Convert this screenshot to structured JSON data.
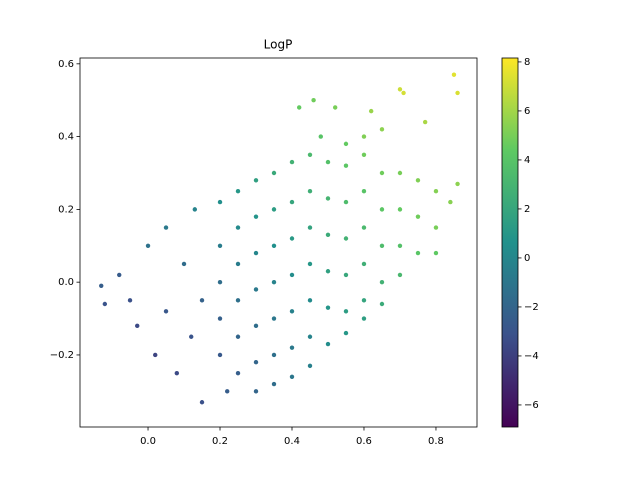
{
  "chart_data": {
    "type": "scatter",
    "title": "LogP",
    "x": [
      -0.13,
      -0.12,
      -0.08,
      -0.05,
      -0.03,
      0.0,
      0.02,
      0.05,
      0.05,
      0.08,
      0.1,
      0.12,
      0.13,
      0.15,
      0.15,
      0.2,
      0.2,
      0.2,
      0.2,
      0.2,
      0.22,
      0.25,
      0.25,
      0.25,
      0.25,
      0.25,
      0.25,
      0.3,
      0.3,
      0.3,
      0.3,
      0.3,
      0.3,
      0.3,
      0.35,
      0.35,
      0.35,
      0.35,
      0.35,
      0.35,
      0.35,
      0.4,
      0.4,
      0.4,
      0.4,
      0.4,
      0.4,
      0.4,
      0.45,
      0.45,
      0.45,
      0.45,
      0.45,
      0.45,
      0.45,
      0.5,
      0.5,
      0.5,
      0.5,
      0.5,
      0.5,
      0.55,
      0.55,
      0.55,
      0.55,
      0.55,
      0.55,
      0.6,
      0.6,
      0.6,
      0.6,
      0.6,
      0.6,
      0.65,
      0.65,
      0.65,
      0.65,
      0.65,
      0.7,
      0.7,
      0.7,
      0.7,
      0.75,
      0.75,
      0.75,
      0.8,
      0.8,
      0.8,
      0.84,
      0.86,
      0.42,
      0.46,
      0.52,
      0.62,
      0.7,
      0.71,
      0.77,
      0.85,
      0.86,
      0.6,
      0.65,
      0.48,
      0.55
    ],
    "y": [
      -0.01,
      -0.06,
      0.02,
      -0.05,
      -0.12,
      0.1,
      -0.2,
      0.15,
      -0.08,
      -0.25,
      0.05,
      -0.15,
      0.2,
      -0.33,
      -0.05,
      0.22,
      0.1,
      0.0,
      -0.1,
      -0.2,
      -0.3,
      0.25,
      0.15,
      0.05,
      -0.05,
      -0.15,
      -0.25,
      0.28,
      0.18,
      0.08,
      -0.02,
      -0.12,
      -0.22,
      -0.3,
      0.3,
      0.2,
      0.1,
      0.0,
      -0.1,
      -0.2,
      -0.28,
      0.33,
      0.22,
      0.12,
      0.02,
      -0.08,
      -0.18,
      -0.26,
      0.35,
      0.25,
      0.15,
      0.05,
      -0.05,
      -0.15,
      -0.23,
      0.33,
      0.23,
      0.13,
      0.03,
      -0.07,
      -0.17,
      0.32,
      0.22,
      0.12,
      0.02,
      -0.08,
      -0.14,
      0.35,
      0.25,
      0.15,
      0.05,
      -0.05,
      -0.1,
      0.3,
      0.2,
      0.1,
      0.0,
      -0.06,
      0.3,
      0.2,
      0.1,
      0.02,
      0.28,
      0.18,
      0.08,
      0.25,
      0.15,
      0.08,
      0.22,
      0.27,
      0.48,
      0.5,
      0.48,
      0.47,
      0.53,
      0.52,
      0.44,
      0.57,
      0.52,
      0.4,
      0.42,
      0.4,
      0.38
    ],
    "c": [
      -2.4,
      -3.0,
      -2.6,
      -3.2,
      -3.5,
      -1.2,
      -3.8,
      -0.8,
      -2.8,
      -3.5,
      -1.6,
      -3.0,
      -0.2,
      -3.2,
      -2.2,
      0.5,
      -0.6,
      -1.5,
      -2.3,
      -2.7,
      -2.5,
      1.0,
      0.2,
      -0.6,
      -1.4,
      -2.0,
      -2.4,
      1.6,
      0.8,
      0.0,
      -0.8,
      -1.5,
      -2.0,
      -2.0,
      2.2,
      1.4,
      0.6,
      -0.2,
      -0.9,
      -1.4,
      -1.5,
      2.8,
      2.0,
      1.2,
      0.4,
      -0.3,
      -0.8,
      -1.0,
      3.3,
      2.6,
      1.8,
      1.0,
      0.3,
      -0.2,
      -0.4,
      3.8,
      3.0,
      2.3,
      1.6,
      0.9,
      0.4,
      4.2,
      3.5,
      2.8,
      2.1,
      1.4,
      1.0,
      4.8,
      4.0,
      3.3,
      2.6,
      1.9,
      1.5,
      4.8,
      4.2,
      3.5,
      2.8,
      2.3,
      5.0,
      4.5,
      3.8,
      3.2,
      5.2,
      4.8,
      4.1,
      5.3,
      5.0,
      4.4,
      5.4,
      5.5,
      4.5,
      4.8,
      5.0,
      5.8,
      7.0,
      7.2,
      6.2,
      7.5,
      7.3,
      5.2,
      5.5,
      4.0,
      4.5
    ],
    "colormap": "viridis",
    "xlim": [
      -0.189,
      0.914
    ],
    "ylim": [
      -0.398,
      0.616
    ],
    "clim": [
      -6.9,
      8.16
    ],
    "xticks": [
      {
        "value": 0.0,
        "label": "0.0"
      },
      0.2,
      0.4,
      0.6,
      0.8
    ],
    "yticks": [
      {
        "value": -0.2,
        "label": "−0.2"
      },
      {
        "value": 0.0,
        "label": "0.0"
      },
      0.2,
      0.4,
      0.6
    ],
    "cticks": [
      {
        "value": -6,
        "label": "−6"
      },
      {
        "value": -4,
        "label": "−4"
      },
      {
        "value": -2,
        "label": "−2"
      },
      0,
      2,
      4,
      6,
      8
    ]
  }
}
